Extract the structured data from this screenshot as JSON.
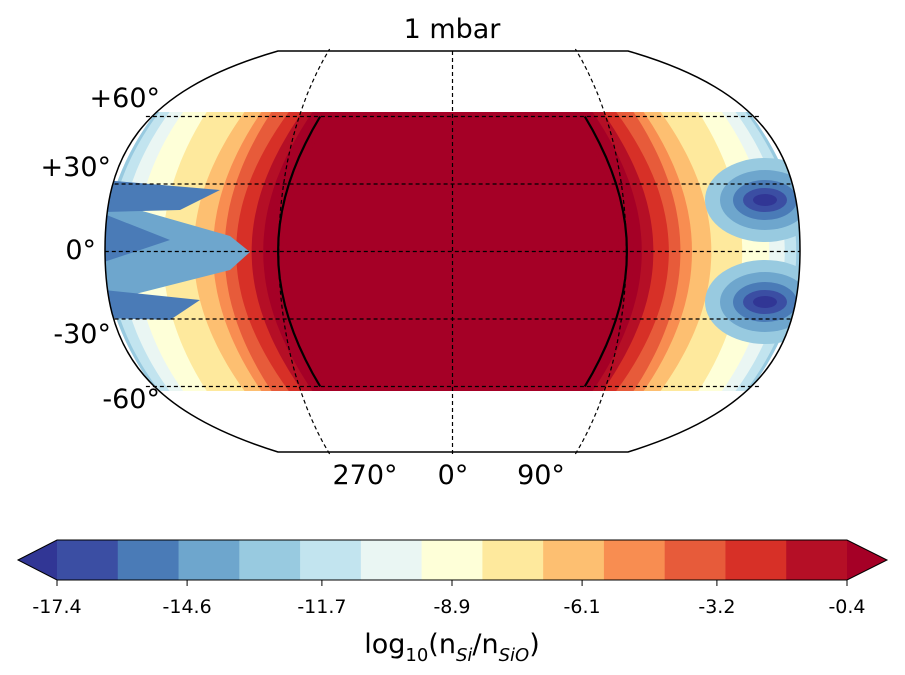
{
  "chart_data": {
    "type": "heatmap",
    "title": "1 mbar",
    "projection": "Kavrayskiy VII (global map)",
    "latitude_tick_labels": [
      "+60°",
      "+30°",
      "0°",
      "-30°",
      "-60°"
    ],
    "latitude_values": [
      60,
      30,
      0,
      -30,
      -60
    ],
    "longitude_tick_labels": [
      "270°",
      "0°",
      "90°"
    ],
    "longitude_values": [
      270,
      0,
      90
    ],
    "data_latitude_range": [
      -60,
      60
    ],
    "contour_line_level": -0.4,
    "colorbar": {
      "label_base": "log",
      "label_sub": "10",
      "label_expr": "(n",
      "label_sub1": "Si",
      "label_slash": "/n",
      "label_sub2": "SiO",
      "label_close": ")",
      "tick_labels": [
        "-17.4",
        "-14.6",
        "-11.7",
        "-8.9",
        "-6.1",
        "-3.2",
        "-0.4"
      ],
      "tick_values": [
        -17.4,
        -14.6,
        -11.7,
        -8.9,
        -6.1,
        -3.2,
        -0.4
      ],
      "levels": [
        -18.8,
        -17.4,
        -16.0,
        -14.6,
        -13.1,
        -11.7,
        -10.3,
        -8.9,
        -7.5,
        -6.1,
        -4.6,
        -3.2,
        -1.8,
        -0.4,
        1.0
      ],
      "extend": "both",
      "colors": [
        "#313695",
        "#3b4ea3",
        "#4a7bb7",
        "#6ea6cd",
        "#98cae0",
        "#c2e4ef",
        "#eaf6f3",
        "#feffd8",
        "#fee99d",
        "#fdbf71",
        "#f88d51",
        "#e75b3a",
        "#d73027",
        "#b50f26",
        "#a50026"
      ]
    }
  }
}
